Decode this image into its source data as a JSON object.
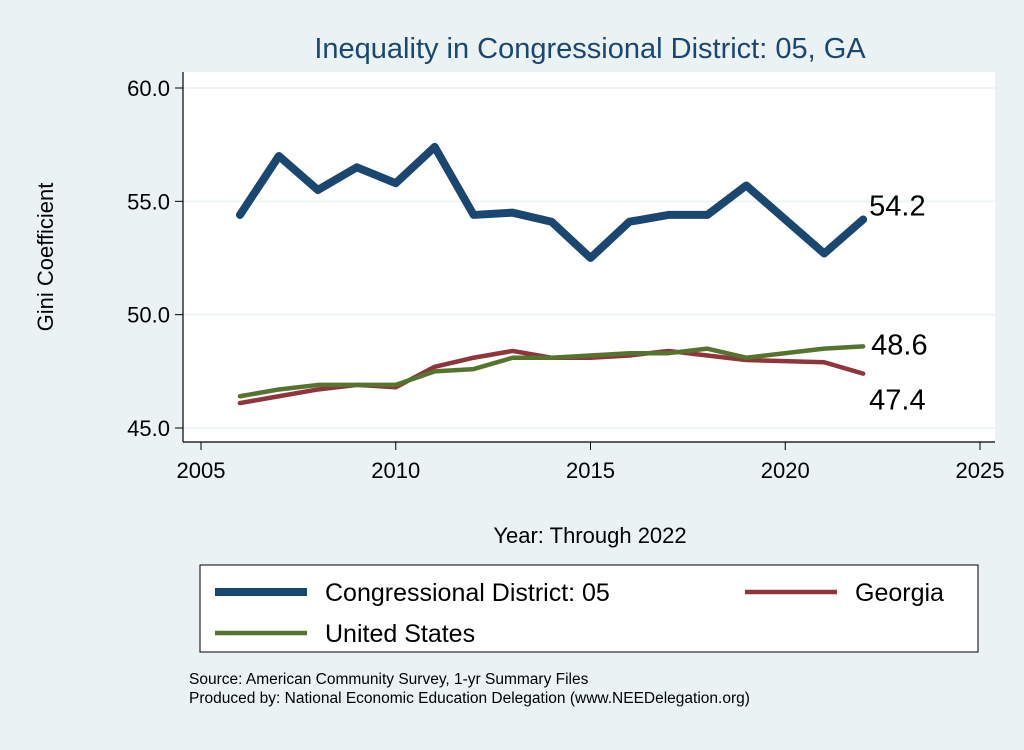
{
  "chart_data": {
    "type": "line",
    "title": "Inequality in Congressional District:  05, GA",
    "xlabel": "Year: Through 2022",
    "ylabel": "Gini Coefficient",
    "xlim": [
      2005,
      2025
    ],
    "ylim": [
      45,
      60
    ],
    "xticks": [
      "2005",
      "2010",
      "2015",
      "2020",
      "2025"
    ],
    "yticks": [
      "45.0",
      "50.0",
      "55.0",
      "60.0"
    ],
    "grid": "horizontal",
    "legend_position": "bottom",
    "series": [
      {
        "name": "Congressional District:  05",
        "color": "#1a476f",
        "x": [
          2006,
          2007,
          2008,
          2009,
          2010,
          2011,
          2012,
          2013,
          2014,
          2015,
          2016,
          2017,
          2018,
          2019,
          2021,
          2022
        ],
        "values": [
          54.4,
          57.0,
          55.5,
          56.5,
          55.8,
          57.4,
          54.4,
          54.5,
          54.1,
          52.5,
          54.1,
          54.4,
          54.4,
          55.7,
          52.7,
          54.2
        ],
        "end_label": "54.2"
      },
      {
        "name": "Georgia",
        "color": "#90353b",
        "x": [
          2006,
          2007,
          2008,
          2009,
          2010,
          2011,
          2012,
          2013,
          2014,
          2015,
          2016,
          2017,
          2018,
          2019,
          2021,
          2022
        ],
        "values": [
          46.1,
          46.4,
          46.7,
          46.9,
          46.8,
          47.7,
          48.1,
          48.4,
          48.1,
          48.1,
          48.2,
          48.4,
          48.2,
          48.0,
          47.9,
          47.4
        ],
        "end_label": "47.4"
      },
      {
        "name": "United States",
        "color": "#55752f",
        "x": [
          2006,
          2007,
          2008,
          2009,
          2010,
          2011,
          2012,
          2013,
          2014,
          2015,
          2016,
          2017,
          2018,
          2019,
          2021,
          2022
        ],
        "values": [
          46.4,
          46.7,
          46.9,
          46.9,
          46.9,
          47.5,
          47.6,
          48.1,
          48.1,
          48.2,
          48.3,
          48.3,
          48.5,
          48.1,
          48.5,
          48.6
        ],
        "end_label": "48.6"
      }
    ]
  },
  "notes": [
    "Source: American Community Survey, 1-yr Summary Files",
    "Produced by: National Economic Education Delegation (www.NEEDelegation.org)"
  ]
}
